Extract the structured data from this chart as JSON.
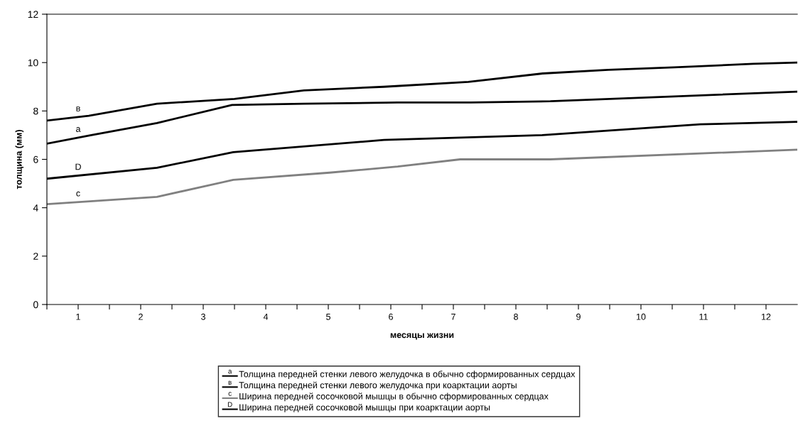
{
  "chart_data": {
    "type": "line",
    "xlabel": "месяцы жизни",
    "ylabel": "толщина (мм)",
    "xlim": [
      0,
      12
    ],
    "xticks": [
      {
        "value": 0,
        "label": null
      },
      {
        "value": 0.5,
        "label": "1"
      },
      {
        "value": 1,
        "label": null
      },
      {
        "value": 1.5,
        "label": "2"
      },
      {
        "value": 2,
        "label": null
      },
      {
        "value": 2.5,
        "label": "3"
      },
      {
        "value": 3,
        "label": null
      },
      {
        "value": 3.5,
        "label": "4"
      },
      {
        "value": 4,
        "label": null
      },
      {
        "value": 4.5,
        "label": "5"
      },
      {
        "value": 5,
        "label": null
      },
      {
        "value": 5.5,
        "label": "6"
      },
      {
        "value": 6,
        "label": null
      },
      {
        "value": 6.5,
        "label": "7"
      },
      {
        "value": 7,
        "label": null
      },
      {
        "value": 7.5,
        "label": "8"
      },
      {
        "value": 8,
        "label": null
      },
      {
        "value": 8.5,
        "label": "9"
      },
      {
        "value": 9,
        "label": null
      },
      {
        "value": 9.5,
        "label": "10"
      },
      {
        "value": 10,
        "label": null
      },
      {
        "value": 10.5,
        "label": "11"
      },
      {
        "value": 11,
        "label": null
      },
      {
        "value": 11.5,
        "label": "12"
      }
    ],
    "ylim": [
      0,
      12
    ],
    "yticks": [
      0,
      2,
      4,
      6,
      8,
      10,
      12
    ],
    "grid": false,
    "legend": "bottom",
    "marker": "none",
    "line_style": "solid",
    "series": [
      {
        "name": "Толщина передней стенки левого желудочка в обычно сформированных сердцах",
        "color": "#000000",
        "x": [
          0,
          0.71,
          1.76,
          2.96,
          4.11,
          5.61,
          6.78,
          8.05,
          10.03,
          12
        ],
        "values": [
          6.65,
          7.0,
          7.5,
          8.25,
          8.3,
          8.35,
          8.35,
          8.4,
          8.6,
          8.8
        ]
      },
      {
        "name": "Толщина передней стенки левого желудочка при коарктации аорты",
        "color": "#000000",
        "x": [
          0,
          0.67,
          1.76,
          3.0,
          4.11,
          5.39,
          6.74,
          7.93,
          8.98,
          10.03,
          11.3,
          12
        ],
        "values": [
          7.6,
          7.8,
          8.3,
          8.5,
          8.85,
          9.0,
          9.2,
          9.55,
          9.7,
          9.8,
          9.95,
          10.0
        ]
      },
      {
        "name": "Ширина передней сосочковой мышцы в обычно сформированных сердцах",
        "color": "#808080",
        "x": [
          0,
          1.76,
          2.98,
          4.52,
          5.61,
          6.61,
          8.05,
          12
        ],
        "values": [
          4.15,
          4.45,
          5.15,
          5.45,
          5.7,
          6.0,
          6.0,
          6.4
        ]
      },
      {
        "name": "Ширина передней сосочковой мышцы при коарктации аорты",
        "color": "#000000",
        "x": [
          0,
          1.76,
          2.98,
          5.39,
          7.92,
          10.45,
          12
        ],
        "values": [
          5.2,
          5.65,
          6.3,
          6.8,
          7.0,
          7.45,
          7.55
        ]
      }
    ],
    "annotations": [
      "а",
      "в",
      "c",
      "D"
    ]
  }
}
